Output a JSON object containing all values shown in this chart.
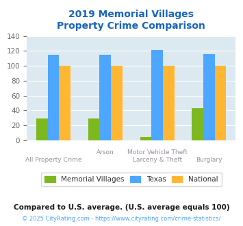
{
  "title": "2019 Memorial Villages\nProperty Crime Comparison",
  "cat_labels_top": [
    "",
    "Arson",
    "Motor Vehicle Theft",
    ""
  ],
  "cat_labels_bot": [
    "All Property Crime",
    "",
    "Larceny & Theft",
    "",
    "Burglary"
  ],
  "memorial_villages": [
    29,
    29,
    4,
    43
  ],
  "texas": [
    115,
    115,
    121,
    116
  ],
  "national": [
    100,
    100,
    100,
    100
  ],
  "mv_color": "#7db81e",
  "texas_color": "#4da6ff",
  "national_color": "#ffb733",
  "title_color": "#1565c0",
  "bg_color": "#dce9f0",
  "ylim": [
    0,
    140
  ],
  "yticks": [
    0,
    20,
    40,
    60,
    80,
    100,
    120,
    140
  ],
  "legend_labels": [
    "Memorial Villages",
    "Texas",
    "National"
  ],
  "footnote1": "Compared to U.S. average. (U.S. average equals 100)",
  "footnote2": "© 2025 CityRating.com - https://www.cityrating.com/crime-statistics/",
  "xlabel_color": "#9b8ea0",
  "footnote1_color": "#1a1a1a",
  "footnote2_color": "#4da6ff"
}
